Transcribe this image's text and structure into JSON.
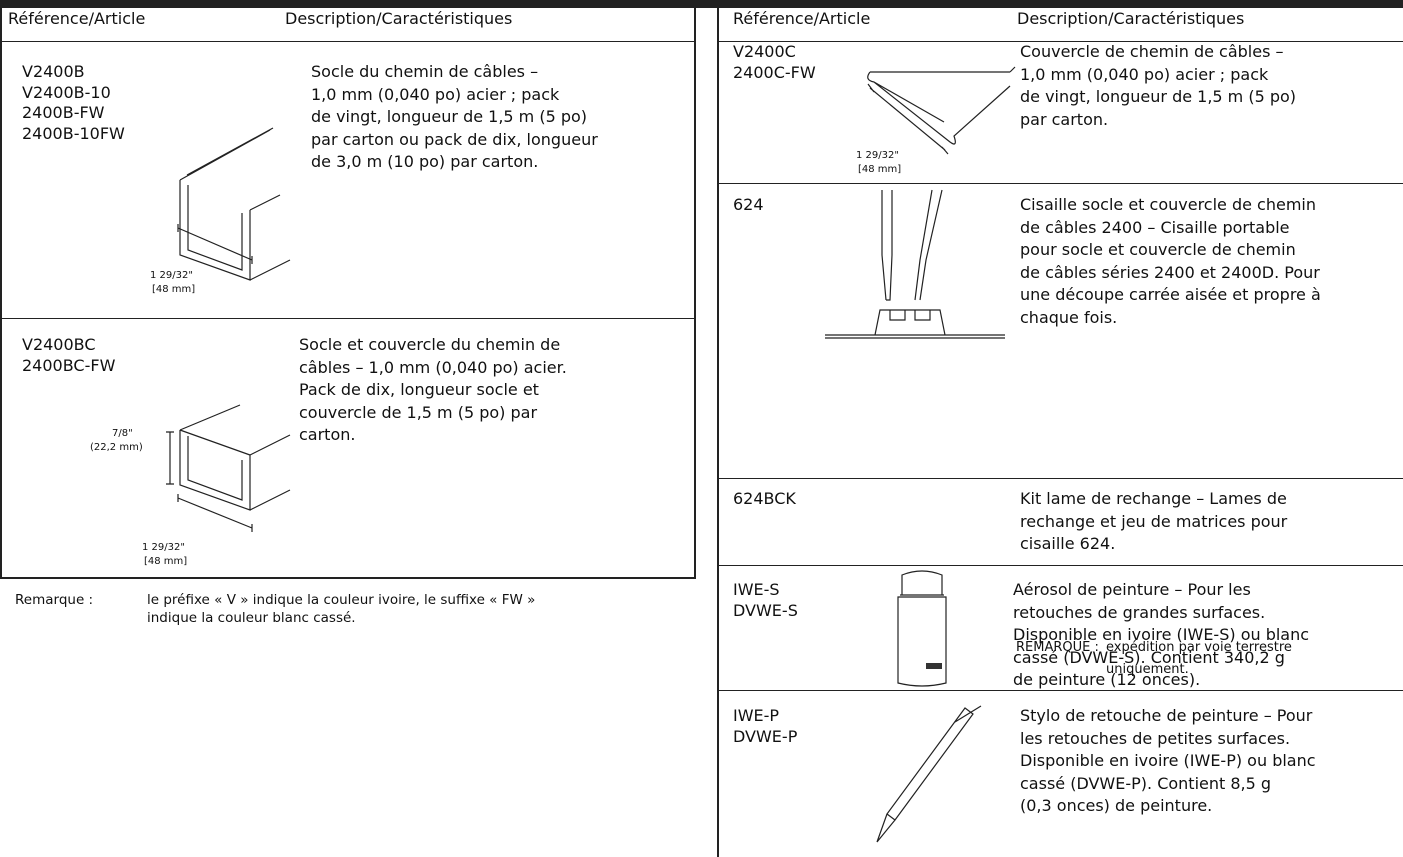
{
  "left_table": {
    "headers": [
      "Référence/Article",
      "Description/Caractéristiques"
    ],
    "rows": [
      {
        "references": [
          "V2400B",
          "V2400B-10",
          "2400B-FW",
          "2400B-10FW"
        ],
        "description": [
          "Socle du chemin de câbles –",
          "1,0 mm (0,040 po) acier ; pack",
          "de vingt, longueur de 1,5 m (5 po)",
          "par carton ou pack de dix, longueur",
          "de 3,0 m (10 po) par carton."
        ],
        "dimensions": [
          "1 29/32\"",
          "[48 mm]"
        ]
      },
      {
        "references": [
          "V2400BC",
          "2400BC-FW"
        ],
        "description": [
          "Socle et couvercle du chemin de",
          "câbles – 1,0 mm (0,040 po) acier.",
          "Pack de dix, longueur socle et",
          "couvercle de 1,5 m (5 po) par",
          "carton."
        ],
        "dimensions": [
          "7/8\"",
          "(22,2 mm)",
          "1 29/32\"",
          "[48 mm]"
        ]
      }
    ]
  },
  "note": {
    "label": "Remarque :",
    "text": [
      "le préfixe « V » indique la couleur ivoire, le suffixe « FW »",
      "indique la couleur blanc cassé."
    ]
  },
  "right_table": {
    "headers": [
      "Référence/Article",
      "Description/Caractéristiques"
    ],
    "rows": [
      {
        "references": [
          "V2400C",
          "2400C-FW"
        ],
        "description": [
          "Couvercle de chemin de câbles –",
          "1,0 mm (0,040 po) acier ; pack",
          "de vingt, longueur de 1,5 m (5 po)",
          "par carton."
        ],
        "dimensions": [
          "1 29/32\"",
          "[48 mm]"
        ]
      },
      {
        "references": [
          "624"
        ],
        "description": [
          "Cisaille socle et couvercle de chemin",
          "de câbles 2400 – Cisaille portable",
          "pour socle et couvercle de chemin",
          "de câbles séries 2400 et 2400D. Pour",
          "une découpe carrée aisée et propre à",
          "chaque fois."
        ]
      },
      {
        "references": [
          "624BCK"
        ],
        "description": [
          "Kit lame de rechange – Lames de",
          "rechange et jeu de matrices pour",
          "cisaille 624."
        ]
      },
      {
        "references": [
          "IWE-S",
          "DVWE-S"
        ],
        "description": [
          "Aérosol de peinture – Pour les",
          "retouches de grandes surfaces.",
          "Disponible en ivoire (IWE-S) ou blanc",
          "cassé (DVWE-S). Contient 340,2 g",
          "de peinture (12 onces)."
        ],
        "remark": {
          "label": "REMARQUE :",
          "text": [
            "expédition par voie terrestre",
            "uniquement."
          ]
        }
      },
      {
        "references": [
          "IWE-P",
          "DVWE-P"
        ],
        "description": [
          "Stylo de retouche de peinture – Pour",
          "les retouches de petites surfaces.",
          "Disponible en ivoire (IWE-P) ou blanc",
          "cassé (DVWE-P). Contient 8,5 g",
          "(0,3 onces) de peinture."
        ]
      }
    ]
  }
}
